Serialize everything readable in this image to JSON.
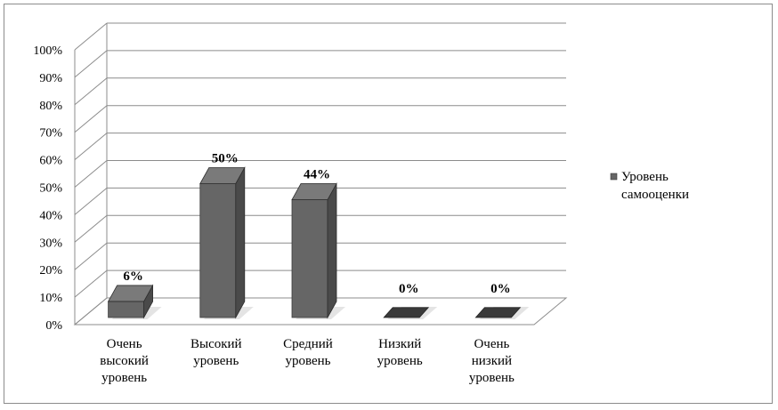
{
  "chart_data": {
    "type": "bar",
    "categories": [
      [
        "Очень",
        "высокий",
        "уровень"
      ],
      [
        "Высокий",
        "уровень"
      ],
      [
        "Средний",
        "уровень"
      ],
      [
        "Низкий",
        "уровень"
      ],
      [
        "Очень",
        "низкий",
        "уровень"
      ]
    ],
    "series": [
      {
        "name": "Уровень самооценки",
        "values": [
          6,
          50,
          44,
          0,
          0
        ]
      }
    ],
    "data_labels": [
      "6%",
      "50%",
      "44%",
      "0%",
      "0%"
    ],
    "legend_lines": [
      "Уровень",
      "самооценки"
    ],
    "y_ticks": [
      "0%",
      "10%",
      "20%",
      "30%",
      "40%",
      "50%",
      "60%",
      "70%",
      "80%",
      "90%",
      "100%"
    ],
    "ylim": [
      0,
      100
    ],
    "grid": true,
    "legend": "right",
    "colors": {
      "bar_front": "#666666",
      "bar_side": "#4a4a4a",
      "bar_top": "#7a7a7a",
      "grid": "#8c8c8c"
    }
  }
}
